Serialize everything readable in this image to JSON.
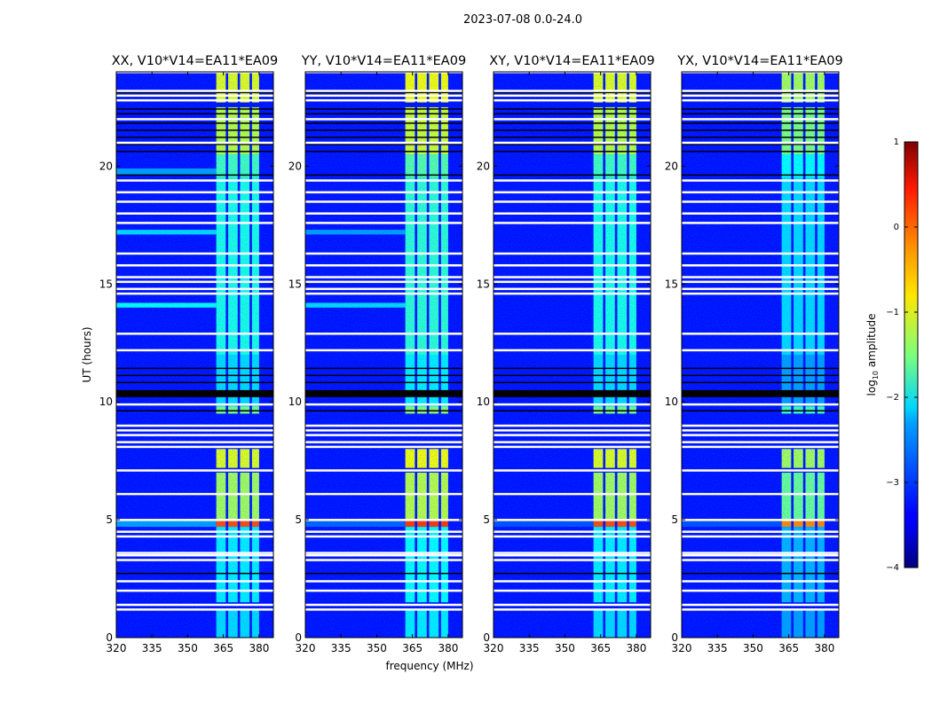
{
  "chart_data": {
    "type": "heatmap",
    "title": "2023-07-08 0.0-24.0",
    "xlabel": "frequency (MHz)",
    "ylabel": "UT (hours)",
    "xlim": [
      320,
      386
    ],
    "ylim": [
      0,
      24
    ],
    "xticks": [
      "320",
      "335",
      "350",
      "365",
      "380"
    ],
    "yticks": [
      "0",
      "5",
      "10",
      "15",
      "20"
    ],
    "colorbar": {
      "label_prefix": "log",
      "label_sub": "10",
      "label_suffix": " amplitude",
      "range": [
        -4,
        1
      ],
      "ticks": [
        "1",
        "0",
        "−1",
        "−2",
        "−3",
        "−4"
      ],
      "colormap": "jet"
    },
    "background_log_amplitude": -3.3,
    "bright_channels_mhz": [
      [
        362,
        366
      ],
      [
        367,
        371
      ],
      [
        372,
        376
      ],
      [
        377,
        380
      ]
    ],
    "panels": [
      {
        "title": "XX, V10*V14=EA11*EA09",
        "brightness_offset": 0.0,
        "bg_features": [
          [
            4.7,
            5.0,
            -2.6
          ],
          [
            14.0,
            14.2,
            -2.1
          ],
          [
            17.1,
            17.3,
            -2.3
          ],
          [
            19.6,
            19.9,
            -2.6
          ]
        ]
      },
      {
        "title": "YY, V10*V14=EA11*EA09",
        "brightness_offset": 0.1,
        "bg_features": [
          [
            4.7,
            5.0,
            -2.9
          ],
          [
            14.0,
            14.2,
            -2.3
          ],
          [
            17.1,
            17.3,
            -2.6
          ]
        ]
      },
      {
        "title": "XY, V10*V14=EA11*EA09",
        "brightness_offset": 0.0,
        "bg_features": [
          [
            4.7,
            5.0,
            -3.0
          ]
        ]
      },
      {
        "title": "YX, V10*V14=EA11*EA09",
        "brightness_offset": -0.3,
        "bg_features": [
          [
            4.7,
            5.0,
            -3.0
          ]
        ]
      }
    ],
    "bright_segments_hours": [
      [
        0.0,
        1.2,
        -2.3
      ],
      [
        1.5,
        4.7,
        -2.2
      ],
      [
        4.7,
        5.0,
        0.0
      ],
      [
        5.0,
        7.0,
        -1.3
      ],
      [
        7.2,
        8.0,
        -1.0
      ],
      [
        9.5,
        9.8,
        -1.5
      ],
      [
        9.8,
        12.0,
        -2.3
      ],
      [
        12.0,
        19.5,
        -2.0
      ],
      [
        19.5,
        20.5,
        -1.8
      ],
      [
        20.5,
        22.5,
        -1.2
      ],
      [
        22.7,
        24.0,
        -1.0
      ]
    ],
    "flagged_hours": [
      1.2,
      1.4,
      2.0,
      2.4,
      3.3,
      3.5,
      3.6,
      4.3,
      4.5,
      5.0,
      6.1,
      7.1,
      8.1,
      8.3,
      8.6,
      8.8,
      9.0,
      9.9,
      12.2,
      12.9,
      14.6,
      14.8,
      15.1,
      15.3,
      15.8,
      16.3,
      17.6,
      18.0,
      18.5,
      18.9,
      19.4,
      21.0,
      22.0,
      22.8,
      23.0,
      23.2,
      24.0
    ],
    "black_hours": [
      [
        10.2,
        10.5
      ],
      [
        9.6,
        9.65
      ],
      [
        10.8,
        10.85
      ],
      [
        11.1,
        11.15
      ],
      [
        11.4,
        11.45
      ],
      [
        20.6,
        20.65
      ],
      [
        20.9,
        20.95
      ],
      [
        21.2,
        21.25
      ],
      [
        21.5,
        21.55
      ],
      [
        21.8,
        21.85
      ],
      [
        22.2,
        22.25
      ],
      [
        22.4,
        22.45
      ],
      [
        23.1,
        23.15
      ],
      [
        2.7,
        2.75
      ],
      [
        19.6,
        19.65
      ]
    ]
  }
}
